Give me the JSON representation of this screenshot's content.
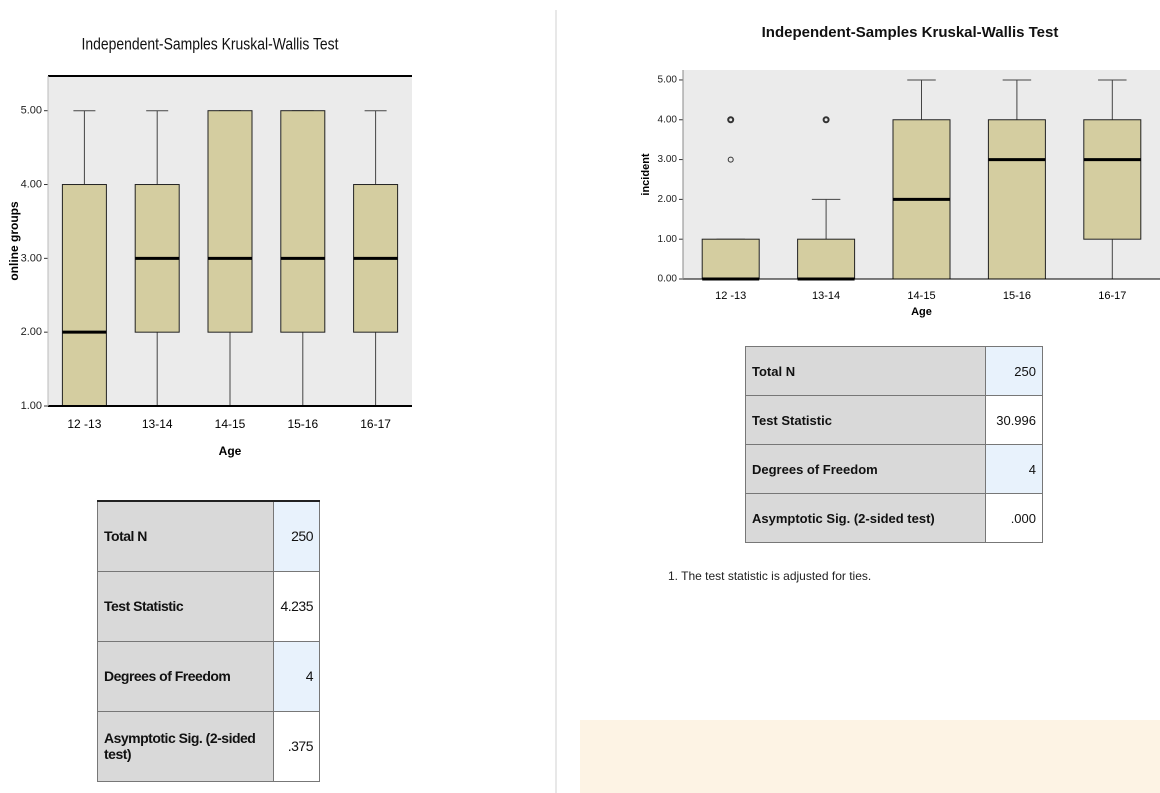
{
  "chart_data": [
    {
      "type": "box",
      "title": "Independent-Samples Kruskal-Wallis Test",
      "y_label": "online groups",
      "x_label": "Age",
      "categories": [
        "12 -13",
        "13-14",
        "14-15",
        "15-16",
        "16-17"
      ],
      "boxes": [
        {
          "min": 1,
          "q1": 1,
          "median": 2,
          "q3": 4,
          "max": 5,
          "outliers": []
        },
        {
          "min": 1,
          "q1": 2,
          "median": 3,
          "q3": 4,
          "max": 5,
          "outliers": []
        },
        {
          "min": 1,
          "q1": 2,
          "median": 3,
          "q3": 5,
          "max": 5,
          "outliers": []
        },
        {
          "min": 1,
          "q1": 2,
          "median": 3,
          "q3": 5,
          "max": 5,
          "outliers": []
        },
        {
          "min": 1,
          "q1": 2,
          "median": 3,
          "q3": 4,
          "max": 5,
          "outliers": []
        }
      ],
      "color": "#d4cda0",
      "ylim": [
        1,
        5.47
      ],
      "yticks": [
        {
          "value": 1,
          "label": "1.00"
        },
        {
          "value": 2,
          "label": "2.00"
        },
        {
          "value": 3,
          "label": "3.00"
        },
        {
          "value": 4,
          "label": "4.00"
        },
        {
          "value": 5,
          "label": "5.00"
        }
      ]
    },
    {
      "type": "box",
      "title": "Independent-Samples Kruskal-Wallis Test",
      "y_label": "incident",
      "x_label": "Age",
      "categories": [
        "12 -13",
        "13-14",
        "14-15",
        "15-16",
        "16-17"
      ],
      "boxes": [
        {
          "min": 0,
          "q1": 0,
          "median": 0,
          "q3": 1,
          "max": 1,
          "outliers": [
            3,
            4
          ]
        },
        {
          "min": 0,
          "q1": 0,
          "median": 0,
          "q3": 1,
          "max": 2,
          "outliers": [
            4
          ]
        },
        {
          "min": 0,
          "q1": 0,
          "median": 2,
          "q3": 4,
          "max": 5,
          "outliers": []
        },
        {
          "min": 0,
          "q1": 0,
          "median": 3,
          "q3": 4,
          "max": 5,
          "outliers": []
        },
        {
          "min": 0,
          "q1": 1,
          "median": 3,
          "q3": 4,
          "max": 5,
          "outliers": []
        }
      ],
      "color": "#d4cda0",
      "ylim": [
        0,
        5.25
      ],
      "yticks": [
        {
          "value": 0,
          "label": "0.00"
        },
        {
          "value": 1,
          "label": "1.00"
        },
        {
          "value": 2,
          "label": "2.00"
        },
        {
          "value": 3,
          "label": "3.00"
        },
        {
          "value": 4,
          "label": "4.00"
        },
        {
          "value": 5,
          "label": "5.00"
        }
      ]
    }
  ],
  "tables": [
    {
      "rows": [
        [
          "Total N",
          "250"
        ],
        [
          "Test Statistic",
          "4.235"
        ],
        [
          "Degrees of Freedom",
          "4"
        ],
        [
          "Asymptotic Sig. (2-sided test)",
          ".375"
        ]
      ]
    },
    {
      "rows": [
        [
          "Total N",
          "250"
        ],
        [
          "Test Statistic",
          "30.996"
        ],
        [
          "Degrees of Freedom",
          "4"
        ],
        [
          "Asymptotic Sig. (2-sided test)",
          ".000"
        ]
      ]
    }
  ],
  "footnote": "1.  The test statistic is adjusted for ties."
}
